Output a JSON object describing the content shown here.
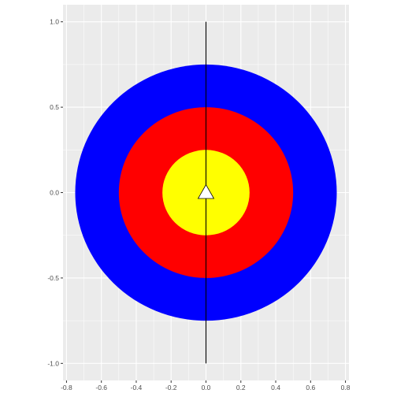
{
  "chart_data": {
    "type": "scatter",
    "title": "",
    "xlabel": "",
    "ylabel": "",
    "xlim": [
      -0.82,
      0.82
    ],
    "ylim": [
      -1.1,
      1.1
    ],
    "grid": true,
    "x_ticks": [
      -0.8,
      -0.6,
      -0.4,
      -0.2,
      0.0,
      0.2,
      0.4,
      0.6,
      0.8
    ],
    "x_tick_labels": [
      "-0.8",
      "-0.6",
      "-0.4",
      "-0.2",
      "0.0",
      "0.2",
      "0.4",
      "0.6",
      "0.8"
    ],
    "y_ticks": [
      -1.0,
      -0.5,
      0.0,
      0.5,
      1.0
    ],
    "y_tick_labels": [
      "-1.0",
      "-0.5",
      "0.0",
      "0.5",
      "1.0"
    ],
    "rings": [
      {
        "radius": 0.75,
        "color": "#0000ff"
      },
      {
        "radius": 0.5,
        "color": "#ff0000"
      },
      {
        "radius": 0.25,
        "color": "#ffff00"
      }
    ],
    "segment": {
      "x": 0.0,
      "y_start": -1.0,
      "y_end": 1.0,
      "color": "#000000"
    },
    "point": {
      "x": 0.0,
      "y": 0.0,
      "shape": "triangle",
      "fill": "#ffffff",
      "stroke": "#000000"
    },
    "panel_background": "#ebebeb",
    "grid_color": "#ffffff"
  }
}
